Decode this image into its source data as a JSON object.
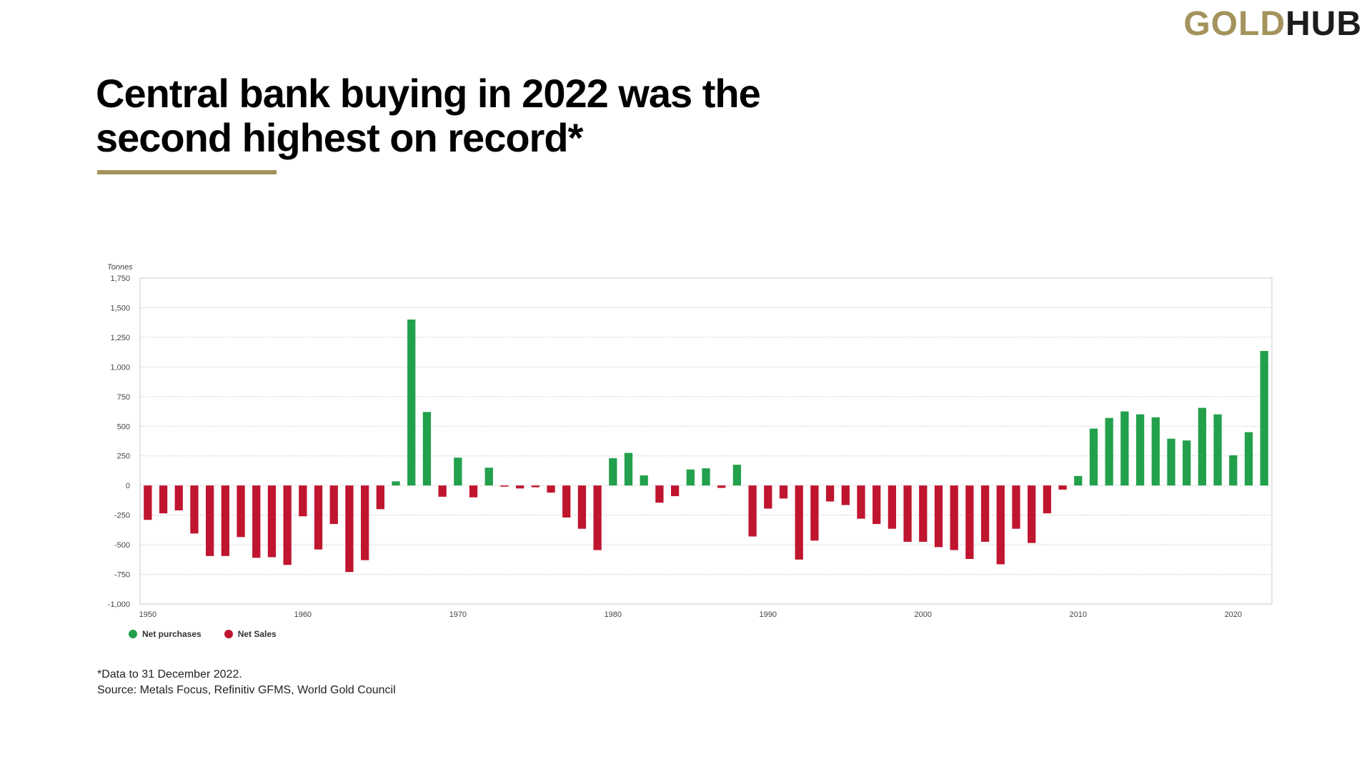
{
  "logo": {
    "part1": "GOLD",
    "part2": "HUB"
  },
  "title": "Central bank buying in 2022 was the second highest on record*",
  "footnote": "*Data to 31 December 2022.",
  "source": "Source: Metals Focus, Refinitiv GFMS, World Gold Council",
  "colors": {
    "positive": "#22a04b",
    "negative": "#c0152f",
    "accent": "#a4935c"
  },
  "chart_data": {
    "type": "bar",
    "ylabel": "Tonnes",
    "ylim": [
      -1000,
      1750
    ],
    "yticks": [
      1750,
      1500,
      1250,
      1000,
      750,
      500,
      250,
      0,
      -250,
      -500,
      -750,
      -1000
    ],
    "ytick_labels": [
      "1,750",
      "1,500",
      "1,250",
      "1,000",
      "750",
      "500",
      "250",
      "0",
      "-250",
      "-500",
      "-750",
      "-1,000"
    ],
    "xticks": [
      1950,
      1960,
      1970,
      1980,
      1990,
      2000,
      2010,
      2020
    ],
    "grid": true,
    "legend": [
      {
        "name": "Net purchases",
        "color": "#22a04b"
      },
      {
        "name": "Net Sales",
        "color": "#c0152f"
      }
    ],
    "legend_position": "bottom-left",
    "x": [
      1950,
      1951,
      1952,
      1953,
      1954,
      1955,
      1956,
      1957,
      1958,
      1959,
      1960,
      1961,
      1962,
      1963,
      1964,
      1965,
      1966,
      1967,
      1968,
      1969,
      1970,
      1971,
      1972,
      1973,
      1974,
      1975,
      1976,
      1977,
      1978,
      1979,
      1980,
      1981,
      1982,
      1983,
      1984,
      1985,
      1986,
      1987,
      1988,
      1989,
      1990,
      1991,
      1992,
      1993,
      1994,
      1995,
      1996,
      1997,
      1998,
      1999,
      2000,
      2001,
      2002,
      2003,
      2004,
      2005,
      2006,
      2007,
      2008,
      2009,
      2010,
      2011,
      2012,
      2013,
      2014,
      2015,
      2016,
      2017,
      2018,
      2019,
      2020,
      2021,
      2022
    ],
    "values": [
      -290,
      -235,
      -210,
      -405,
      -595,
      -595,
      -435,
      -610,
      -605,
      -670,
      -260,
      -540,
      -325,
      -730,
      -630,
      -200,
      35,
      1400,
      620,
      -95,
      235,
      -100,
      150,
      -10,
      -25,
      -15,
      -60,
      -270,
      -365,
      -545,
      230,
      275,
      85,
      -145,
      -90,
      135,
      145,
      -20,
      175,
      -430,
      -195,
      -110,
      -625,
      -465,
      -135,
      -165,
      -280,
      -325,
      -365,
      -475,
      -475,
      -520,
      -545,
      -620,
      -475,
      -665,
      -365,
      -485,
      -235,
      -35,
      80,
      480,
      570,
      625,
      600,
      575,
      395,
      380,
      655,
      600,
      255,
      450,
      1135
    ]
  }
}
